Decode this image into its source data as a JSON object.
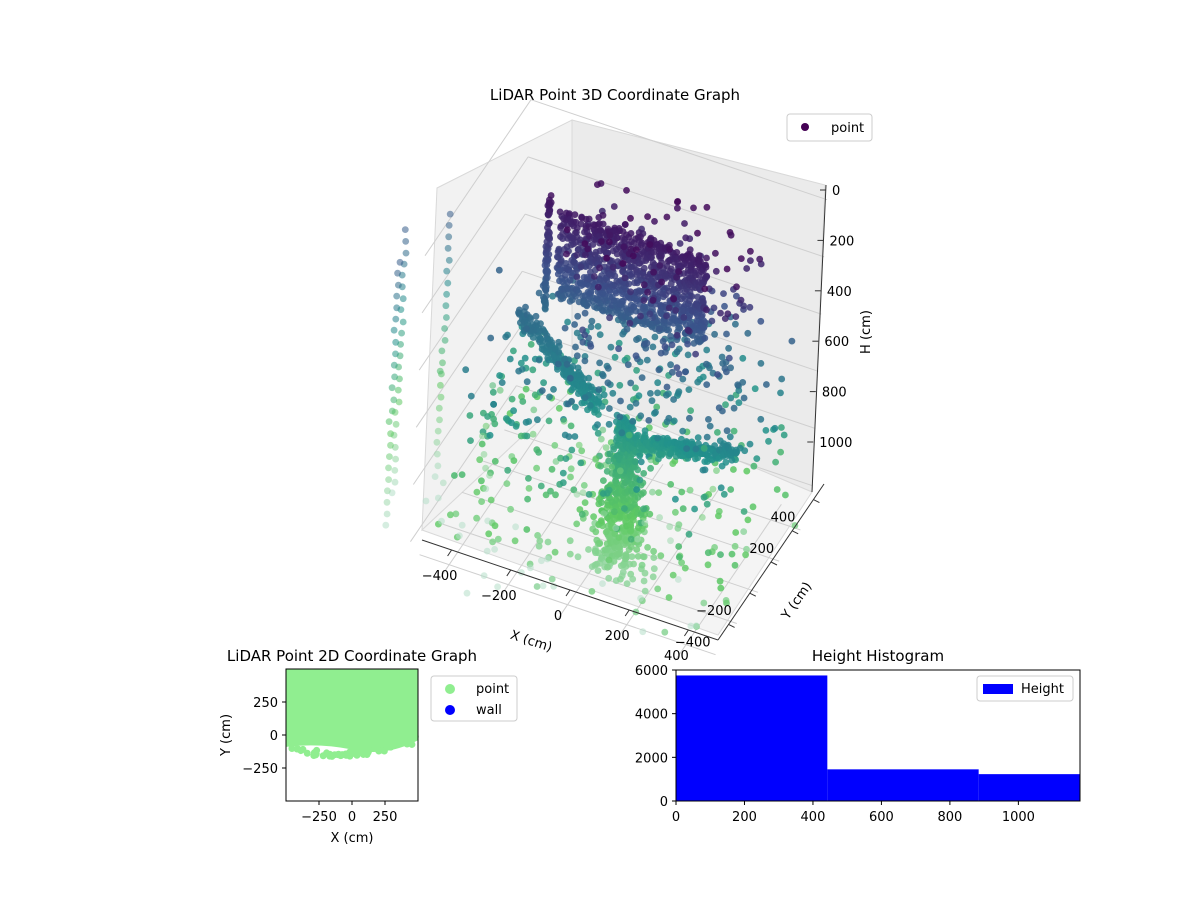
{
  "chart_data": [
    {
      "type": "scatter3d",
      "title": "LiDAR Point 3D Coordinate Graph",
      "xlabel": "X (cm)",
      "ylabel": "Y (cm)",
      "zlabel": "H (cm)",
      "legend": {
        "entries": [
          "point"
        ],
        "placement": "top-right"
      },
      "x_ticks": [
        "−400",
        "−200",
        "0",
        "200",
        "400"
      ],
      "y_ticks": [
        "−400",
        "−200",
        "0",
        "200",
        "400"
      ],
      "z_ticks": [
        "0",
        "200",
        "400",
        "600",
        "800",
        "1000"
      ],
      "xlim": [
        -500,
        500
      ],
      "ylim": [
        -500,
        500
      ],
      "zlim": [
        0,
        1100
      ],
      "grid": true,
      "colormap": "viridis",
      "point_color_range": [
        "#440154",
        "#21918c",
        "#9fdcc5"
      ],
      "features": [
        {
          "kind": "wall-surface",
          "x_range": [
            -260,
            240
          ],
          "y": 120,
          "z_range": [
            90,
            400
          ]
        },
        {
          "kind": "pole-column",
          "x": -300,
          "y": 130,
          "z_range": [
            60,
            460
          ]
        },
        {
          "kind": "branch",
          "from": [
            -60,
            0,
            650
          ],
          "to": [
            -360,
            60,
            450
          ]
        },
        {
          "kind": "branch",
          "from": [
            60,
            -20,
            720
          ],
          "to": [
            420,
            -80,
            600
          ]
        },
        {
          "kind": "trunk",
          "x": 40,
          "y": -20,
          "z_range": [
            650,
            1150
          ]
        }
      ]
    },
    {
      "type": "scatter",
      "title": "LiDAR Point 2D Coordinate Graph",
      "xlabel": "X (cm)",
      "ylabel": "Y (cm)",
      "x_ticks": [
        "−250",
        "0",
        "250"
      ],
      "y_ticks": [
        "250",
        "0",
        "−250"
      ],
      "xlim": [
        -500,
        500
      ],
      "ylim": [
        -500,
        500
      ],
      "legend": {
        "entries": [
          "point",
          "wall"
        ],
        "placement": "outside-right"
      },
      "series": [
        {
          "name": "point",
          "color": "#90ee90",
          "region": {
            "x_range": [
              -500,
              500
            ],
            "y_range": [
              -130,
              500
            ]
          }
        },
        {
          "name": "wall",
          "color": "#0000ff",
          "points": []
        }
      ]
    },
    {
      "type": "histogram",
      "title": "Height Histogram",
      "bins": [
        {
          "start": 0,
          "end": 442,
          "count": 5750
        },
        {
          "start": 442,
          "end": 884,
          "count": 1450
        },
        {
          "start": 884,
          "end": 1180,
          "count": 1230
        }
      ],
      "xlim": [
        0,
        1180
      ],
      "ylim": [
        0,
        6000
      ],
      "x_ticks": [
        "0",
        "200",
        "400",
        "600",
        "800",
        "1000"
      ],
      "y_ticks": [
        "0",
        "2000",
        "4000",
        "6000"
      ],
      "legend": {
        "entries": [
          "Height"
        ],
        "placement": "top-right"
      },
      "bar_color": "#0000ff"
    }
  ]
}
